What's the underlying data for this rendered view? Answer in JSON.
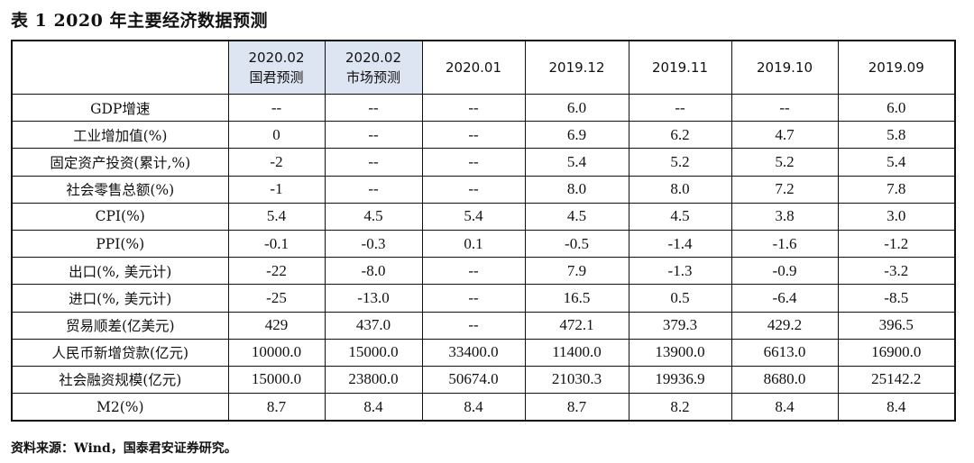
{
  "title": "表 1 2020 年主要经济数据预测",
  "columns": [
    {
      "line1": "",
      "line2": ""
    },
    {
      "line1": "2020.02",
      "line2": "国君预测"
    },
    {
      "line1": "2020.02",
      "line2": "市场预测"
    },
    {
      "line1": "2020.01",
      "line2": ""
    },
    {
      "line1": "2019.12",
      "line2": ""
    },
    {
      "line1": "2019.11",
      "line2": ""
    },
    {
      "line1": "2019.10",
      "line2": ""
    },
    {
      "line1": "2019.09",
      "line2": ""
    }
  ],
  "highlight_color": "#dde4f2",
  "rows": [
    {
      "label": "GDP增速",
      "values": [
        "--",
        "--",
        "--",
        "6.0",
        "--",
        "--",
        "6.0"
      ]
    },
    {
      "label": "工业增加值(%)",
      "values": [
        "0",
        "--",
        "--",
        "6.9",
        "6.2",
        "4.7",
        "5.8"
      ]
    },
    {
      "label": "固定资产投资(累计,%)",
      "values": [
        "-2",
        "--",
        "--",
        "5.4",
        "5.2",
        "5.2",
        "5.4"
      ]
    },
    {
      "label": "社会零售总额(%)",
      "values": [
        "-1",
        "--",
        "--",
        "8.0",
        "8.0",
        "7.2",
        "7.8"
      ]
    },
    {
      "label": "CPI(%)",
      "values": [
        "5.4",
        "4.5",
        "5.4",
        "4.5",
        "4.5",
        "3.8",
        "3.0"
      ]
    },
    {
      "label": "PPI(%)",
      "values": [
        "-0.1",
        "-0.3",
        "0.1",
        "-0.5",
        "-1.4",
        "-1.6",
        "-1.2"
      ]
    },
    {
      "label": "出口(%, 美元计)",
      "values": [
        "-22",
        "-8.0",
        "--",
        "7.9",
        "-1.3",
        "-0.9",
        "-3.2"
      ]
    },
    {
      "label": "进口(%, 美元计)",
      "values": [
        "-25",
        "-13.0",
        "--",
        "16.5",
        "0.5",
        "-6.4",
        "-8.5"
      ]
    },
    {
      "label": "贸易顺差(亿美元)",
      "values": [
        "429",
        "437.0",
        "--",
        "472.1",
        "379.3",
        "429.2",
        "396.5"
      ]
    },
    {
      "label": "人民币新增贷款(亿元)",
      "values": [
        "10000.0",
        "15000.0",
        "33400.0",
        "11400.0",
        "13900.0",
        "6613.0",
        "16900.0"
      ]
    },
    {
      "label": "社会融资规模(亿元)",
      "values": [
        "15000.0",
        "23800.0",
        "50674.0",
        "21030.3",
        "19936.9",
        "8680.0",
        "25142.2"
      ]
    },
    {
      "label": "M2(%)",
      "values": [
        "8.7",
        "8.4",
        "8.4",
        "8.7",
        "8.2",
        "8.4",
        "8.4"
      ]
    }
  ],
  "source": "资料来源：Wind，国泰君安证券研究。"
}
